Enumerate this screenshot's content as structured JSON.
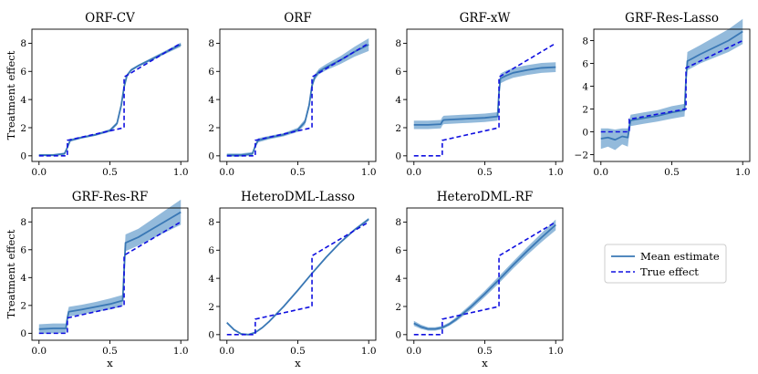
{
  "chart_data": {
    "type": "line",
    "colors": {
      "mean": "#3a78b5",
      "band": "#6fa3cf",
      "true": "#1010e0"
    },
    "legend": {
      "placement": "lower-right",
      "entries": [
        "Mean estimate",
        "True effect"
      ]
    },
    "xticks": [
      "0.0",
      "0.5",
      "1.0"
    ],
    "xlim": [
      -0.05,
      1.05
    ],
    "ylabel": "Treatment effect",
    "xlabel": "x",
    "true_effect": {
      "x": [
        0,
        0.2,
        0.2,
        0.6,
        0.6,
        1.0
      ],
      "y": [
        0,
        0,
        1.1,
        2.0,
        5.6,
        8.0
      ]
    },
    "panels": [
      {
        "title": "ORF-CV",
        "ylim": [
          -0.4,
          9
        ],
        "yticks": [
          "0",
          "2",
          "4",
          "6",
          "8"
        ],
        "xlabel": "",
        "ylabel": "Treatment effect",
        "mean": {
          "x": [
            0,
            0.1,
            0.18,
            0.2,
            0.22,
            0.3,
            0.4,
            0.5,
            0.55,
            0.58,
            0.6,
            0.62,
            0.65,
            0.7,
            0.8,
            0.9,
            1.0
          ],
          "y": [
            0.05,
            0.05,
            0.15,
            0.6,
            1.1,
            1.3,
            1.5,
            1.8,
            2.3,
            3.6,
            4.9,
            5.7,
            6.1,
            6.4,
            6.9,
            7.4,
            7.9
          ]
        },
        "band": [
          0.08,
          0.08,
          0.08,
          0.1,
          0.1,
          0.08,
          0.08,
          0.1,
          0.12,
          0.15,
          0.15,
          0.12,
          0.1,
          0.08,
          0.1,
          0.12,
          0.15
        ]
      },
      {
        "title": "ORF",
        "ylim": [
          -0.4,
          9
        ],
        "yticks": [
          "0",
          "2",
          "4",
          "6",
          "8"
        ],
        "xlabel": "",
        "ylabel": "",
        "mean": {
          "x": [
            0,
            0.1,
            0.18,
            0.2,
            0.22,
            0.3,
            0.4,
            0.5,
            0.55,
            0.58,
            0.6,
            0.62,
            0.65,
            0.7,
            0.8,
            0.9,
            1.0
          ],
          "y": [
            0.05,
            0.05,
            0.15,
            0.7,
            1.1,
            1.3,
            1.5,
            1.85,
            2.4,
            3.6,
            5.0,
            5.6,
            6.0,
            6.3,
            6.8,
            7.4,
            7.9
          ]
        },
        "band": [
          0.12,
          0.12,
          0.12,
          0.15,
          0.15,
          0.12,
          0.12,
          0.15,
          0.2,
          0.25,
          0.25,
          0.2,
          0.2,
          0.22,
          0.28,
          0.35,
          0.45
        ]
      },
      {
        "title": "GRF-xW",
        "ylim": [
          -0.4,
          9
        ],
        "yticks": [
          "0",
          "2",
          "4",
          "6",
          "8"
        ],
        "xlabel": "",
        "ylabel": "",
        "mean": {
          "x": [
            0,
            0.1,
            0.19,
            0.2,
            0.21,
            0.3,
            0.4,
            0.5,
            0.59,
            0.6,
            0.61,
            0.65,
            0.7,
            0.8,
            0.9,
            1.0
          ],
          "y": [
            2.2,
            2.2,
            2.25,
            2.45,
            2.55,
            2.6,
            2.65,
            2.7,
            2.8,
            4.5,
            5.5,
            5.7,
            5.9,
            6.1,
            6.25,
            6.3
          ]
        },
        "band": [
          0.3,
          0.3,
          0.3,
          0.3,
          0.3,
          0.3,
          0.3,
          0.3,
          0.3,
          0.4,
          0.35,
          0.35,
          0.35,
          0.35,
          0.35,
          0.35
        ]
      },
      {
        "title": "GRF-Res-Lasso",
        "ylim": [
          -2.6,
          9
        ],
        "yticks": [
          "−2",
          "0",
          "2",
          "4",
          "6",
          "8"
        ],
        "xlabel": "",
        "ylabel": "",
        "mean": {
          "x": [
            0,
            0.05,
            0.1,
            0.15,
            0.19,
            0.2,
            0.21,
            0.3,
            0.4,
            0.5,
            0.59,
            0.6,
            0.61,
            0.7,
            0.8,
            0.9,
            1.0
          ],
          "y": [
            -0.6,
            -0.5,
            -0.7,
            -0.4,
            -0.5,
            0.4,
            1.0,
            1.2,
            1.4,
            1.7,
            1.9,
            4.6,
            6.2,
            6.8,
            7.4,
            8.0,
            8.8
          ]
        },
        "band": [
          0.9,
          0.8,
          0.9,
          0.7,
          0.8,
          0.6,
          0.5,
          0.5,
          0.5,
          0.55,
          0.55,
          0.7,
          0.8,
          0.8,
          0.9,
          1.0,
          1.1
        ]
      },
      {
        "title": "GRF-Res-RF",
        "ylim": [
          -0.5,
          9
        ],
        "yticks": [
          "0",
          "2",
          "4",
          "6",
          "8"
        ],
        "xlabel": "x",
        "ylabel": "Treatment effect",
        "mean": {
          "x": [
            0,
            0.1,
            0.19,
            0.2,
            0.21,
            0.3,
            0.4,
            0.5,
            0.59,
            0.6,
            0.61,
            0.7,
            0.8,
            0.9,
            1.0
          ],
          "y": [
            0.3,
            0.35,
            0.35,
            1.1,
            1.55,
            1.7,
            1.9,
            2.1,
            2.35,
            4.5,
            6.5,
            6.9,
            7.5,
            8.1,
            8.7
          ]
        },
        "band": [
          0.35,
          0.35,
          0.35,
          0.35,
          0.35,
          0.35,
          0.35,
          0.4,
          0.4,
          0.5,
          0.6,
          0.6,
          0.7,
          0.8,
          0.9
        ]
      },
      {
        "title": "HeteroDML-Lasso",
        "ylim": [
          -0.4,
          9
        ],
        "yticks": [
          "0",
          "2",
          "4",
          "6",
          "8"
        ],
        "xlabel": "x",
        "ylabel": "",
        "mean": {
          "x": [
            0,
            0.05,
            0.1,
            0.15,
            0.2,
            0.25,
            0.3,
            0.4,
            0.5,
            0.6,
            0.7,
            0.8,
            0.9,
            1.0
          ],
          "y": [
            0.85,
            0.35,
            0.05,
            0.0,
            0.15,
            0.5,
            0.95,
            2.0,
            3.15,
            4.35,
            5.5,
            6.55,
            7.45,
            8.2
          ]
        },
        "band": [
          0.08,
          0.06,
          0.05,
          0.05,
          0.05,
          0.05,
          0.05,
          0.05,
          0.05,
          0.05,
          0.05,
          0.06,
          0.08,
          0.1
        ]
      },
      {
        "title": "HeteroDML-RF",
        "ylim": [
          -0.4,
          9
        ],
        "yticks": [
          "0",
          "2",
          "4",
          "6",
          "8"
        ],
        "xlabel": "x",
        "ylabel": "",
        "mean": {
          "x": [
            0,
            0.05,
            0.1,
            0.15,
            0.2,
            0.25,
            0.3,
            0.4,
            0.5,
            0.6,
            0.7,
            0.8,
            0.9,
            1.0
          ],
          "y": [
            0.8,
            0.55,
            0.4,
            0.4,
            0.5,
            0.75,
            1.1,
            1.95,
            2.9,
            3.9,
            4.95,
            5.95,
            6.9,
            7.8
          ]
        },
        "band": [
          0.18,
          0.15,
          0.12,
          0.12,
          0.12,
          0.12,
          0.15,
          0.2,
          0.22,
          0.25,
          0.25,
          0.28,
          0.32,
          0.38
        ]
      }
    ]
  }
}
